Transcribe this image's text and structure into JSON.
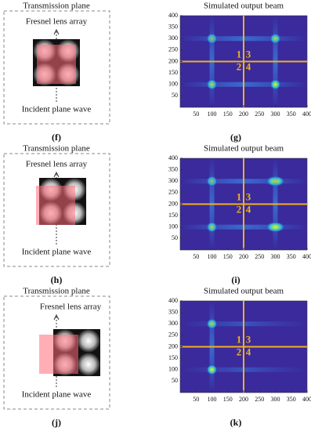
{
  "panels": [
    {
      "title": "Transmission plane",
      "top": "Fresnel lens array",
      "bottom": "Incident plane wave",
      "label": "(f)"
    },
    {
      "title": "Transmission plane",
      "top": "Fresnel lens array",
      "bottom": "Incident plane wave",
      "label": "(h)"
    },
    {
      "title": "Transmission plane",
      "top": "Fresnel lens array",
      "bottom": "Incident plane wave",
      "label": "(j)"
    }
  ],
  "maps": [
    {
      "title": "Simulated output beam",
      "label": "(g)",
      "xticks": [
        50,
        100,
        150,
        200,
        250,
        300,
        350,
        400
      ],
      "yticks": [
        50,
        100,
        150,
        200,
        250,
        300,
        350,
        400
      ],
      "quadrants": [
        "1",
        "3",
        "2",
        "4"
      ]
    },
    {
      "title": "Simulated output beam",
      "label": "(i)",
      "xticks": [
        50,
        100,
        150,
        200,
        250,
        300,
        350,
        400
      ],
      "yticks": [
        50,
        100,
        150,
        200,
        250,
        300,
        350,
        400
      ],
      "quadrants": [
        "1",
        "3",
        "2",
        "4"
      ]
    },
    {
      "title": "Simulated output beam",
      "label": "(k)",
      "xticks": [
        50,
        100,
        150,
        200,
        250,
        300,
        350,
        400
      ],
      "yticks": [
        50,
        100,
        150,
        200,
        250,
        300,
        350,
        400
      ],
      "quadrants": [
        "1",
        "3",
        "2",
        "4"
      ]
    }
  ]
}
